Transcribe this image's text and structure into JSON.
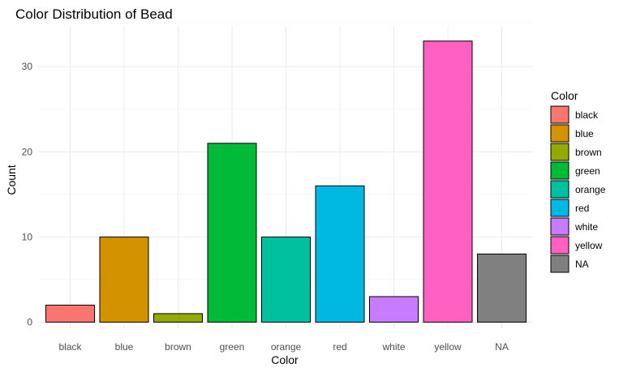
{
  "chart_data": {
    "type": "bar",
    "title": "Color Distribution of Bead",
    "xlabel": "Color",
    "ylabel": "Count",
    "categories": [
      "black",
      "blue",
      "brown",
      "green",
      "orange",
      "red",
      "white",
      "yellow",
      "NA"
    ],
    "values": [
      2,
      10,
      1,
      21,
      10,
      16,
      3,
      33,
      8
    ],
    "colors": [
      "#F8766D",
      "#D39200",
      "#93AA00",
      "#00BA38",
      "#00C19F",
      "#00B9E3",
      "#C77CFF",
      "#FF61C3",
      "#808080"
    ],
    "ylim": [
      0,
      33
    ],
    "yticks": [
      0,
      10,
      20,
      30
    ],
    "grid": true,
    "legend": {
      "title": "Color",
      "position": "right",
      "entries": [
        "black",
        "blue",
        "brown",
        "green",
        "orange",
        "red",
        "white",
        "yellow",
        "NA"
      ]
    }
  }
}
